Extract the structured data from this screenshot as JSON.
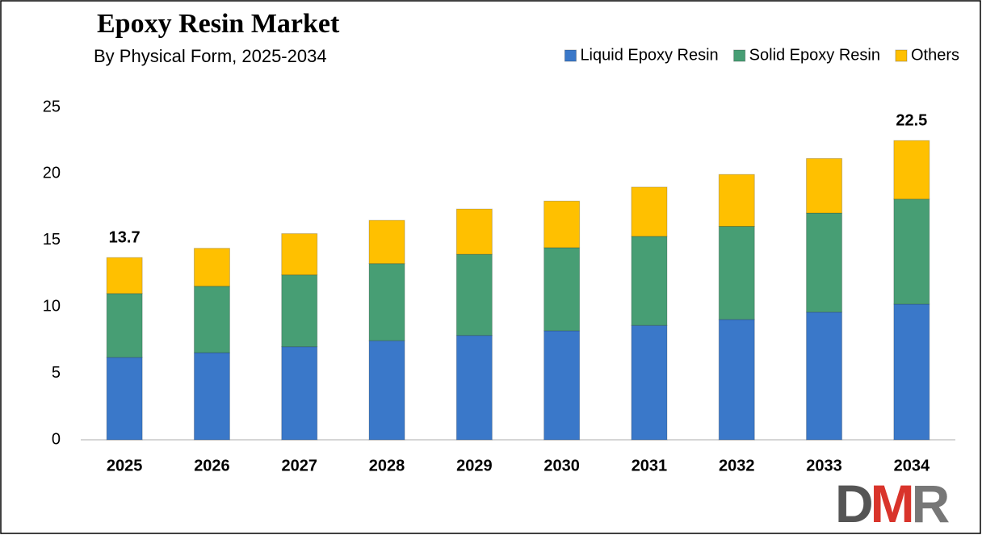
{
  "chart_data": {
    "type": "stacked-bar",
    "title": "Epoxy Resin Market",
    "subtitle": "By Physical Form, 2025-2034",
    "categories": [
      "2025",
      "2026",
      "2027",
      "2028",
      "2029",
      "2030",
      "2031",
      "2032",
      "2033",
      "2034"
    ],
    "series": [
      {
        "name": "Liquid Epoxy Resin",
        "color": "#3a78c9",
        "values": [
          6.2,
          6.55,
          7.0,
          7.45,
          7.85,
          8.2,
          8.6,
          9.05,
          9.6,
          10.2
        ]
      },
      {
        "name": "Solid Epoxy Resin",
        "color": "#479e74",
        "values": [
          4.8,
          5.0,
          5.4,
          5.8,
          6.1,
          6.25,
          6.7,
          7.0,
          7.45,
          7.9
        ]
      },
      {
        "name": "Others",
        "color": "#ffc000",
        "values": [
          2.7,
          2.85,
          3.1,
          3.25,
          3.4,
          3.5,
          3.7,
          3.9,
          4.1,
          4.4
        ]
      }
    ],
    "annotations": [
      {
        "x": "2025",
        "value": 13.7
      },
      {
        "x": "2034",
        "value": 22.5
      }
    ],
    "ylim": [
      0,
      25
    ],
    "yticks": [
      0,
      5,
      10,
      15,
      20,
      25
    ],
    "legend": "top-right",
    "logo": [
      "D",
      "M",
      "R"
    ]
  }
}
